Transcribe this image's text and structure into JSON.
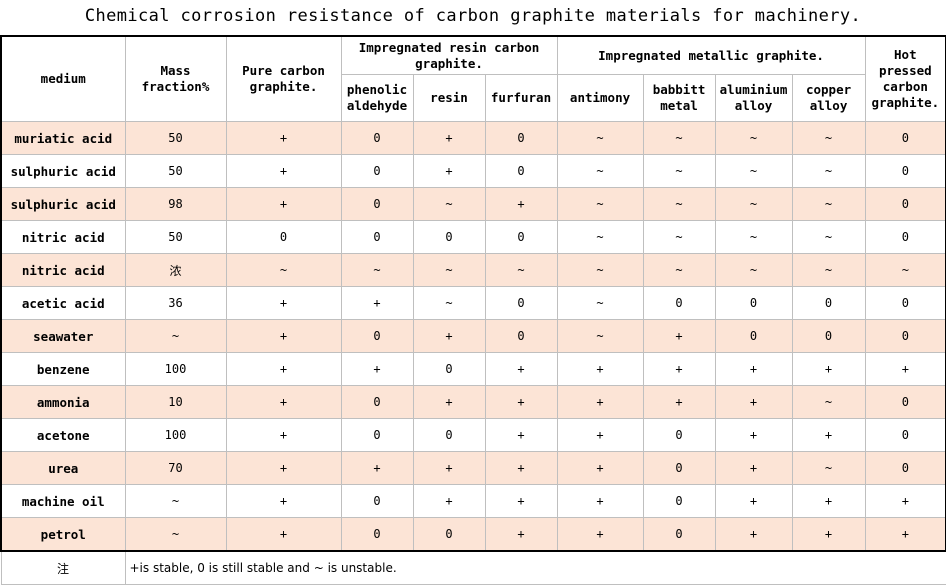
{
  "title": "Chemical corrosion resistance of carbon graphite materials for machinery.",
  "headers": {
    "medium": "medium",
    "mass_fraction": "Mass fraction%",
    "pure_carbon": "Pure carbon graphite.",
    "resin_group": "Impregnated resin carbon graphite.",
    "metallic_group": "Impregnated metallic graphite.",
    "hot_pressed": "Hot pressed carbon graphite.",
    "phenolic": "phenolic aldehyde",
    "resin": "resin",
    "furfuran": "furfuran",
    "antimony": "antimony",
    "babbitt": "babbitt metal",
    "aluminium": "aluminium alloy",
    "copper": "copper alloy"
  },
  "rows": [
    {
      "medium": "muriatic acid",
      "mass": "50",
      "cells": [
        "+",
        "0",
        "+",
        "0",
        "~",
        "~",
        "~",
        "~",
        "0"
      ]
    },
    {
      "medium": "sulphuric acid",
      "mass": "50",
      "cells": [
        "+",
        "0",
        "+",
        "0",
        "~",
        "~",
        "~",
        "~",
        "0"
      ]
    },
    {
      "medium": "sulphuric acid",
      "mass": "98",
      "cells": [
        "+",
        "0",
        "~",
        "+",
        "~",
        "~",
        "~",
        "~",
        "0"
      ]
    },
    {
      "medium": "nitric acid",
      "mass": "50",
      "cells": [
        "0",
        "0",
        "0",
        "0",
        "~",
        "~",
        "~",
        "~",
        "0"
      ]
    },
    {
      "medium": "nitric acid",
      "mass": "浓",
      "cells": [
        "~",
        "~",
        "~",
        "~",
        "~",
        "~",
        "~",
        "~",
        "~"
      ]
    },
    {
      "medium": "acetic acid",
      "mass": "36",
      "cells": [
        "+",
        "+",
        "~",
        "0",
        "~",
        "0",
        "0",
        "0",
        "0"
      ]
    },
    {
      "medium": "seawater",
      "mass": "~",
      "cells": [
        "+",
        "0",
        "+",
        "0",
        "~",
        "+",
        "0",
        "0",
        "0"
      ]
    },
    {
      "medium": "benzene",
      "mass": "100",
      "cells": [
        "+",
        "+",
        "0",
        "+",
        "+",
        "+",
        "+",
        "+",
        "+"
      ]
    },
    {
      "medium": "ammonia",
      "mass": "10",
      "cells": [
        "+",
        "0",
        "+",
        "+",
        "+",
        "+",
        "+",
        "~",
        "0"
      ]
    },
    {
      "medium": "acetone",
      "mass": "100",
      "cells": [
        "+",
        "0",
        "0",
        "+",
        "+",
        "0",
        "+",
        "+",
        "0"
      ]
    },
    {
      "medium": "urea",
      "mass": "70",
      "cells": [
        "+",
        "+",
        "+",
        "+",
        "+",
        "0",
        "+",
        "~",
        "0"
      ]
    },
    {
      "medium": "machine oil",
      "mass": "~",
      "cells": [
        "+",
        "0",
        "+",
        "+",
        "+",
        "0",
        "+",
        "+",
        "+"
      ]
    },
    {
      "medium": "petrol",
      "mass": "~",
      "cells": [
        "+",
        "0",
        "0",
        "+",
        "+",
        "0",
        "+",
        "+",
        "+"
      ]
    }
  ],
  "note": {
    "label": "注",
    "text": "+is stable, 0 is still stable and ~ is unstable."
  },
  "colors": {
    "alt_row": "#fce4d6",
    "plain_row": "#ffffff"
  }
}
